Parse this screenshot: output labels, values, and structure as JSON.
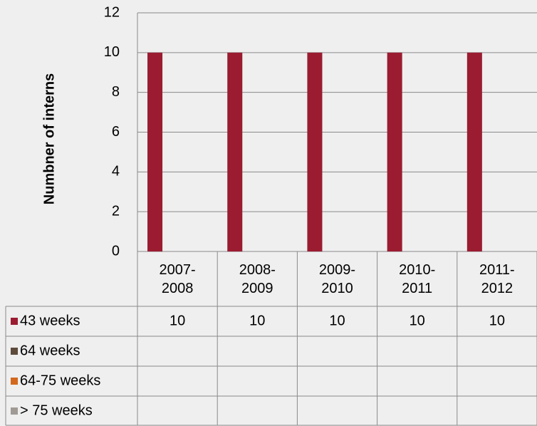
{
  "chart_data": {
    "type": "bar",
    "y_label": "Numbner of interns",
    "categories": [
      "2007-2008",
      "2008-2009",
      "2009-2010",
      "2010-2011",
      "2011-2012"
    ],
    "series": [
      {
        "name": "43 weeks",
        "color": "#9b1c31",
        "values": [
          10,
          10,
          10,
          10,
          10
        ]
      },
      {
        "name": "64 weeks",
        "color": "#5e4b3c",
        "values": [
          null,
          null,
          null,
          null,
          null
        ]
      },
      {
        "name": "64-75 weeks",
        "color": "#d2691e",
        "values": [
          null,
          null,
          null,
          null,
          null
        ]
      },
      {
        "name": "> 75 weeks",
        "color": "#a09a94",
        "values": [
          null,
          null,
          null,
          null,
          null
        ]
      }
    ],
    "ylim": [
      0,
      12
    ],
    "yticks": [
      0,
      2,
      4,
      6,
      8,
      10,
      12
    ],
    "grid": true,
    "data_table": true
  }
}
